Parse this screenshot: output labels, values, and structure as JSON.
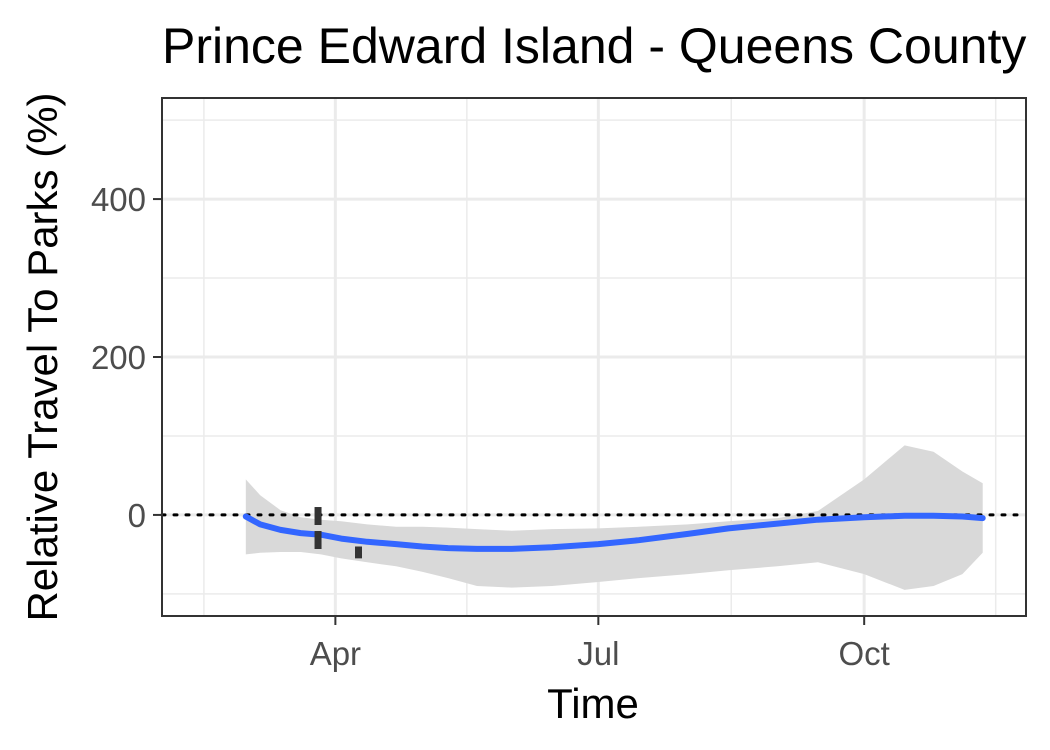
{
  "chart_data": {
    "type": "line",
    "title": "Prince Edward Island - Queens County",
    "xlabel": "Time",
    "ylabel": "Relative Travel To Parks (%)",
    "x_ticks": [
      "Apr",
      "Jul",
      "Oct"
    ],
    "y_ticks": [
      0,
      200,
      400
    ],
    "xlim": [
      "2020-02-01",
      "2020-11-26"
    ],
    "ylim": [
      -128,
      528
    ],
    "grid": true,
    "reference_line": {
      "y": 0,
      "style": "dotted"
    },
    "series": [
      {
        "kind": "smooth",
        "color": "#3366ff",
        "x": [
          "2020-03-01",
          "2020-03-06",
          "2020-03-13",
          "2020-03-20",
          "2020-03-27",
          "2020-04-03",
          "2020-04-12",
          "2020-04-22",
          "2020-05-01",
          "2020-05-10",
          "2020-05-20",
          "2020-06-01",
          "2020-06-15",
          "2020-07-01",
          "2020-07-15",
          "2020-08-01",
          "2020-08-15",
          "2020-09-01",
          "2020-09-15",
          "2020-10-01",
          "2020-10-15",
          "2020-10-25",
          "2020-11-04",
          "2020-11-11"
        ],
        "y": [
          -2,
          -12,
          -19,
          -23,
          -25,
          -30,
          -34,
          -37,
          -40,
          -42,
          -43,
          -43,
          -41,
          -37,
          -32,
          -24,
          -17,
          -11,
          -6,
          -3,
          -1,
          -1,
          -2,
          -4
        ],
        "ci_lower": [
          -50,
          -48,
          -47,
          -47,
          -50,
          -55,
          -60,
          -65,
          -72,
          -80,
          -90,
          -92,
          -90,
          -85,
          -80,
          -75,
          -70,
          -65,
          -60,
          -75,
          -95,
          -90,
          -75,
          -48
        ],
        "ci_upper": [
          45,
          25,
          6,
          -3,
          -6,
          -8,
          -12,
          -15,
          -15,
          -16,
          -18,
          -20,
          -18,
          -17,
          -15,
          -12,
          -8,
          -4,
          5,
          45,
          88,
          80,
          55,
          40
        ]
      }
    ],
    "markers": [
      {
        "x": "2020-03-26",
        "y_from": -48,
        "y_to": 10,
        "color": "#333333",
        "style": "dashed"
      },
      {
        "x": "2020-04-09",
        "y_from": -55,
        "y_to": -40,
        "color": "#333333",
        "style": "dashed"
      }
    ],
    "ci_color": "#d9d9d9",
    "grid_color": "#ebebeb",
    "panel_border_color": "#333333"
  }
}
